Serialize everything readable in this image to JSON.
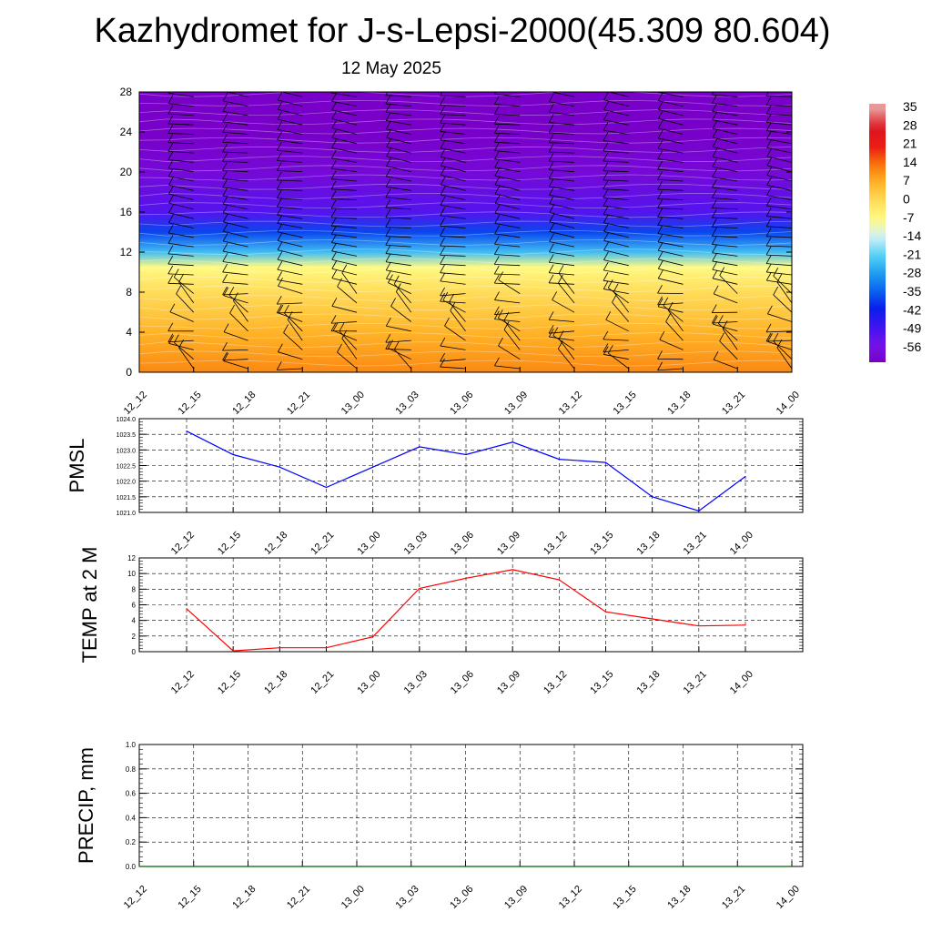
{
  "header": {
    "title": "Kazhydromet for J-s-Lepsi-2000(45.309 80.604)",
    "subtitle": "12 May 2025"
  },
  "time_labels": [
    "12_12",
    "12_15",
    "12_18",
    "12_21",
    "13_00",
    "13_03",
    "13_06",
    "13_09",
    "13_12",
    "13_15",
    "13_18",
    "13_21",
    "14_00"
  ],
  "colors": {
    "pmsl_line": "#0000ff",
    "temp_line": "#ff0000",
    "precip_line": "#006400"
  },
  "chart_data": [
    {
      "type": "heatmap",
      "title": "",
      "xlabel": "",
      "ylabel": "",
      "x": [
        "12_12",
        "12_15",
        "12_18",
        "12_21",
        "13_00",
        "13_03",
        "13_06",
        "13_09",
        "13_12",
        "13_15",
        "13_18",
        "13_21",
        "14_00"
      ],
      "yticks": [
        0,
        4,
        8,
        12,
        16,
        20,
        24,
        28
      ],
      "ylim": [
        0,
        28
      ],
      "temperature_profile": [
        {
          "y": 0,
          "value": 12
        },
        {
          "y": 4,
          "value": 7
        },
        {
          "y": 8,
          "value": 0
        },
        {
          "y": 10.5,
          "value": -7
        },
        {
          "y": 12,
          "value": -24
        },
        {
          "y": 14,
          "value": -38
        },
        {
          "y": 16,
          "value": -52
        },
        {
          "y": 20,
          "value": -60
        },
        {
          "y": 24,
          "value": -64
        },
        {
          "y": 28,
          "value": -64
        }
      ],
      "overlay": "wind barbs",
      "colorbar": {
        "labels": [
          "35",
          "28",
          "21",
          "14",
          "7",
          "0",
          "-7",
          "-14",
          "-21",
          "-28",
          "-35",
          "-42",
          "-49",
          "-56"
        ],
        "range": [
          -63,
          38
        ]
      }
    },
    {
      "type": "line",
      "ylabel": "PMSL",
      "x": [
        "12_12",
        "12_15",
        "12_18",
        "12_21",
        "13_00",
        "13_03",
        "13_06",
        "13_09",
        "13_12",
        "13_15",
        "13_18",
        "13_21",
        "14_00"
      ],
      "values": [
        1023.6,
        1022.85,
        1022.45,
        1021.8,
        1022.45,
        1023.1,
        1022.85,
        1023.25,
        1022.7,
        1022.6,
        1021.5,
        1021.05,
        1022.15
      ],
      "ylim": [
        1021.0,
        1024.0
      ],
      "yticks": [
        "1021.0",
        "1021.5",
        "1022.0",
        "1022.5",
        "1023.0",
        "1023.5",
        "1024.0"
      ],
      "grid": true
    },
    {
      "type": "line",
      "ylabel": "TEMP at 2 M",
      "x": [
        "12_12",
        "12_15",
        "12_18",
        "12_21",
        "13_00",
        "13_03",
        "13_06",
        "13_09",
        "13_12",
        "13_15",
        "13_18",
        "13_21",
        "14_00"
      ],
      "values": [
        5.5,
        0.1,
        0.5,
        0.5,
        1.9,
        8.1,
        9.4,
        10.5,
        9.2,
        5.1,
        4.2,
        3.3,
        3.4
      ],
      "ylim": [
        0,
        12
      ],
      "yticks": [
        "0",
        "2",
        "4",
        "6",
        "8",
        "10",
        "12"
      ],
      "grid": true
    },
    {
      "type": "line",
      "ylabel": "PRECIP, mm",
      "x": [
        "12_12",
        "12_15",
        "12_18",
        "12_21",
        "13_00",
        "13_03",
        "13_06",
        "13_09",
        "13_12",
        "13_15",
        "13_18",
        "13_21",
        "14_00"
      ],
      "values": [
        0,
        0,
        0,
        0,
        0,
        0,
        0,
        0,
        0,
        0,
        0,
        0,
        0
      ],
      "ylim": [
        0,
        1.0
      ],
      "yticks": [
        "0.0",
        "0.2",
        "0.4",
        "0.6",
        "0.8",
        "1.0"
      ],
      "grid": true
    }
  ]
}
